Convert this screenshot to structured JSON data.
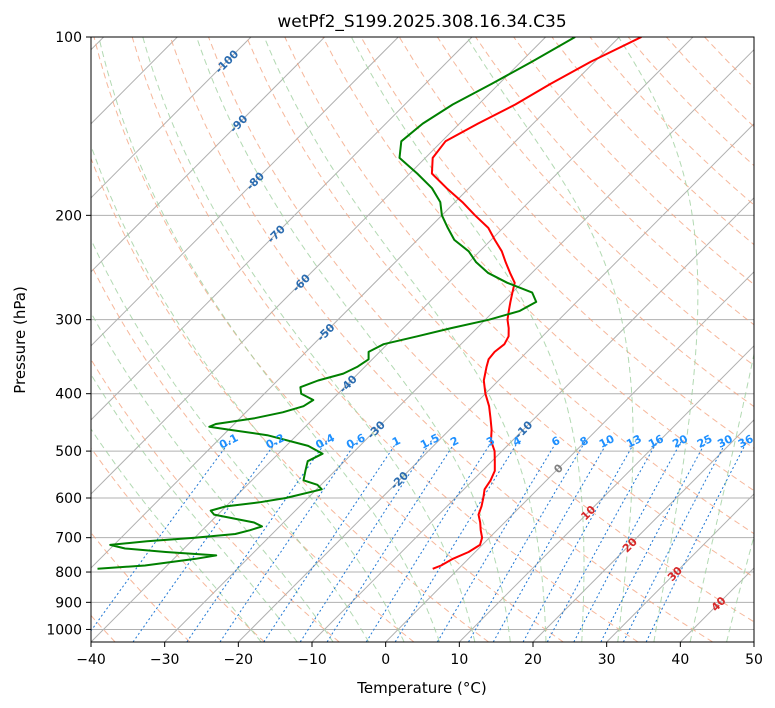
{
  "chart_data": {
    "type": "line",
    "title": "wetPf2_S199.2025.308.16.34.C35",
    "xlabel": "Temperature (°C)",
    "ylabel": "Pressure (hPa)",
    "xlim": [
      -40,
      50
    ],
    "ylim": [
      1050,
      100
    ],
    "y_scale": "log",
    "skew": "skew-T log-p",
    "grid": true,
    "x_ticks": [
      -40,
      -30,
      -20,
      -10,
      0,
      10,
      20,
      30,
      40,
      50
    ],
    "x_tick_labels": [
      "−40",
      "−30",
      "−20",
      "−10",
      "0",
      "10",
      "20",
      "30",
      "40",
      "50"
    ],
    "y_ticks": [
      1000,
      900,
      800,
      700,
      600,
      500,
      400,
      300,
      200,
      100
    ],
    "y_tick_labels": [
      "1000",
      "900",
      "800",
      "700",
      "600",
      "500",
      "400",
      "300",
      "200",
      "100"
    ],
    "series": [
      {
        "color": "#ff0000",
        "pressure": [
          790,
          780,
          760,
          740,
          720,
          700,
          680,
          660,
          640,
          620,
          600,
          580,
          560,
          540,
          520,
          500,
          480,
          460,
          440,
          420,
          400,
          380,
          360,
          350,
          340,
          330,
          320,
          310,
          300,
          290,
          280,
          270,
          260,
          250,
          240,
          230,
          220,
          210,
          200,
          190,
          180,
          170,
          160,
          150,
          140,
          130,
          120,
          110,
          100
        ],
        "temperature": [
          -3.5,
          -2.8,
          -2.1,
          -0.9,
          -0.3,
          -1.0,
          -2.2,
          -3.3,
          -4.6,
          -5.3,
          -6.2,
          -7.2,
          -7.6,
          -8.3,
          -9.6,
          -11.0,
          -12.9,
          -14.3,
          -16.0,
          -17.8,
          -20.0,
          -22.0,
          -23.5,
          -24.2,
          -24.4,
          -24.1,
          -24.6,
          -25.7,
          -27.0,
          -28.0,
          -29.0,
          -30.0,
          -31.0,
          -33.0,
          -35.0,
          -37.0,
          -39.5,
          -42.0,
          -45.5,
          -49.0,
          -53.0,
          -57.0,
          -59.0,
          -59.5,
          -57.5,
          -55.0,
          -53.0,
          -50.5,
          -47.0
        ]
      },
      {
        "color": "#008000",
        "pressure": [
          790,
          780,
          760,
          750,
          740,
          730,
          720,
          710,
          700,
          690,
          680,
          670,
          660,
          640,
          630,
          620,
          610,
          600,
          580,
          570,
          560,
          540,
          520,
          505,
          490,
          470,
          460,
          455,
          450,
          440,
          430,
          420,
          410,
          400,
          390,
          380,
          370,
          360,
          350,
          340,
          330,
          320,
          310,
          300,
          290,
          280,
          270,
          260,
          250,
          240,
          230,
          220,
          210,
          200,
          190,
          180,
          170,
          160,
          150,
          140,
          130,
          120,
          110,
          100
        ],
        "temperature": [
          -49.0,
          -43.0,
          -37.0,
          -34.7,
          -42.0,
          -48.0,
          -50.5,
          -46.0,
          -40.0,
          -35.0,
          -33.5,
          -32.4,
          -34.0,
          -40.5,
          -41.5,
          -40.0,
          -36.0,
          -33.0,
          -29.3,
          -30.5,
          -33.0,
          -34.0,
          -35.0,
          -34.0,
          -37.0,
          -44.0,
          -50.0,
          -53.0,
          -52.5,
          -48.0,
          -45.0,
          -43.0,
          -42.5,
          -45.0,
          -46.0,
          -44.5,
          -42.0,
          -41.0,
          -40.5,
          -41.5,
          -40.5,
          -37.0,
          -33.5,
          -29.5,
          -26.5,
          -25.5,
          -27.3,
          -32.0,
          -36.0,
          -39.0,
          -41.5,
          -45.0,
          -47.5,
          -50.0,
          -52.0,
          -55.0,
          -59.0,
          -63.5,
          -65.5,
          -65.0,
          -63.5,
          -61.0,
          -58.5,
          -56.0
        ]
      }
    ],
    "dry_adiabats": [
      -40,
      -30,
      -20,
      -10,
      0,
      10,
      20,
      30,
      40,
      50,
      60,
      70,
      80,
      90,
      100,
      110,
      120,
      130,
      140,
      150,
      160,
      170,
      180
    ],
    "moist_adiabats": [
      -20,
      -15,
      -10,
      -5,
      0,
      5,
      10,
      15,
      20,
      25,
      30,
      35,
      40,
      45
    ],
    "mixing_ratio_labels": [
      "0.1",
      "0.2",
      "0.4",
      "0.6",
      "1",
      "1.5",
      "2",
      "3",
      "4",
      "6",
      "8",
      "10",
      "13",
      "16",
      "20",
      "25",
      "30",
      "36"
    ],
    "mixing_ratio_values": [
      0.1,
      0.2,
      0.4,
      0.6,
      1,
      1.5,
      2,
      3,
      4,
      6,
      8,
      10,
      13,
      16,
      20,
      25,
      30,
      36
    ],
    "isotherm_labels_blue": [
      "-100",
      "-90",
      "-80",
      "-70",
      "-60",
      "-50",
      "-40",
      "-30",
      "-20",
      "-10"
    ],
    "isotherm_labels_blue_values": [
      -100,
      -90,
      -80,
      -70,
      -60,
      -50,
      -40,
      -30,
      -20,
      -10
    ],
    "isotherm_labels_other": [
      "0",
      "10",
      "20",
      "30",
      "40"
    ],
    "isotherm_labels_other_values": [
      0,
      10,
      20,
      30,
      40
    ],
    "colors": {
      "temperature": "#ff0000",
      "dewpoint": "#008000",
      "isotherm": "#b0b0b0",
      "isobar": "#b0b0b0",
      "dry_adiabat": "#f4a582",
      "moist_adiabat": "#9fcf9f",
      "mixing_ratio": "#1f77d4",
      "label_blue": "#2b6cb0",
      "label_mixing": "#1e90ff",
      "label_zero": "#808080",
      "label_red": "#d62728"
    }
  }
}
